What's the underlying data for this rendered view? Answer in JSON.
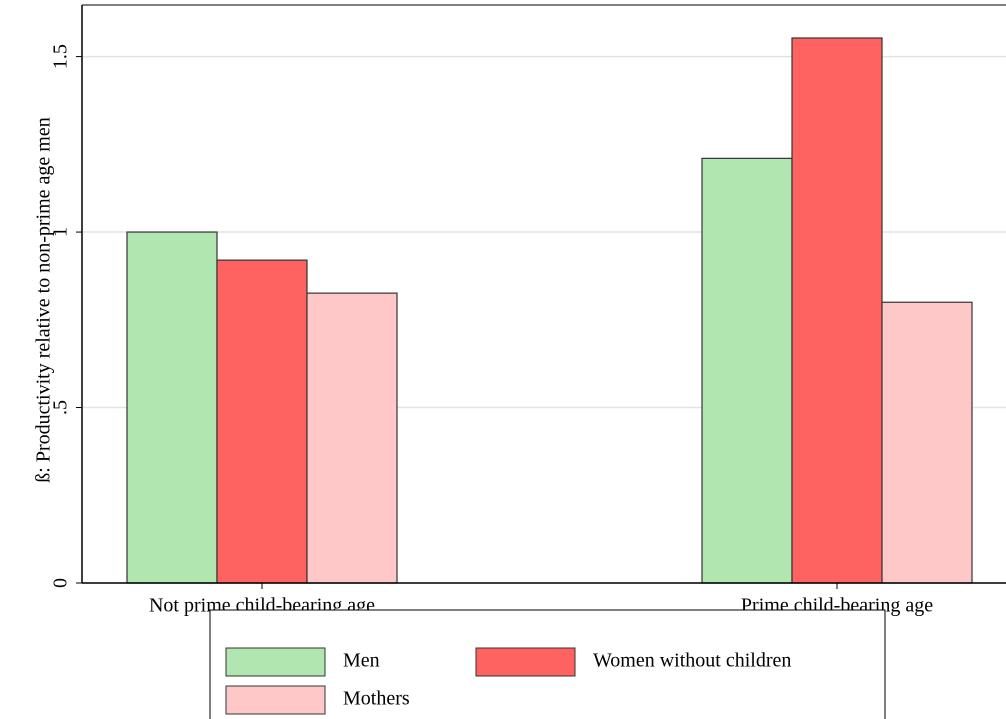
{
  "chart_data": {
    "type": "bar",
    "y_label": "ß: Productivity relative to non-prime age men",
    "categories": [
      "Not prime child-bearing age",
      "Prime child-bearing age"
    ],
    "series": [
      {
        "name": "Men",
        "color": "#b2e6b0",
        "values": [
          1.0,
          1.21
        ]
      },
      {
        "name": "Women without children",
        "color": "#ff6361",
        "values": [
          0.92,
          1.553
        ]
      },
      {
        "name": "Mothers",
        "color": "#ffc8c8",
        "values": [
          0.826,
          0.8
        ]
      }
    ],
    "ylim": [
      0,
      1.647
    ],
    "yticks": [
      0,
      {
        "value": 0.5,
        "label": ".5"
      },
      1,
      1.5
    ],
    "grid": true
  }
}
